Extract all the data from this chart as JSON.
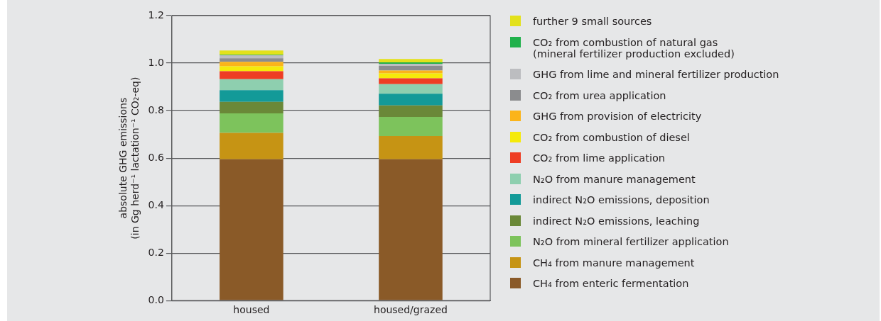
{
  "chart_data": {
    "type": "bar",
    "stacked": true,
    "ylabel": "absolute GHG emissions\n(in Gg herd⁻¹ lactation⁻¹ CO₂-eq)",
    "categories": [
      "housed",
      "housed/grazed"
    ],
    "ylim": [
      0,
      1.2
    ],
    "yticks": [
      {
        "value": 0,
        "label": "0.0"
      },
      {
        "value": 0.2,
        "label": "0.2"
      },
      {
        "value": 0.4,
        "label": "0.4"
      },
      {
        "value": 0.6,
        "label": "0.6"
      },
      {
        "value": 0.8,
        "label": "0.8"
      },
      {
        "value": 1,
        "label": "1.0"
      },
      {
        "value": 1.2,
        "label": "1.2"
      }
    ],
    "grid": "y",
    "legend": "right",
    "series": [
      {
        "name": "CH₄ from enteric fermentation",
        "color": "#8a5a28",
        "values": [
          0.595,
          0.595
        ]
      },
      {
        "name": "CH₄ from manure management",
        "color": "#c69414",
        "values": [
          0.111,
          0.098
        ]
      },
      {
        "name": "N₂O from mineral fertilizer application",
        "color": "#7dc35c",
        "values": [
          0.082,
          0.08
        ]
      },
      {
        "name": "indirect N₂O emissions, leaching",
        "color": "#6a8838",
        "values": [
          0.049,
          0.049
        ]
      },
      {
        "name": "indirect N₂O emissions, deposition",
        "color": "#139a98",
        "values": [
          0.049,
          0.049
        ]
      },
      {
        "name": "N₂O from manure management",
        "color": "#8ecfaf",
        "values": [
          0.046,
          0.04
        ]
      },
      {
        "name": "CO₂ from lime application",
        "color": "#ee3d24",
        "values": [
          0.034,
          0.025
        ]
      },
      {
        "name": "CO₂ from combustion of diesel",
        "color": "#f5ea0a",
        "values": [
          0.021,
          0.021
        ]
      },
      {
        "name": "GHG from provision of electricity",
        "color": "#fbb41a",
        "values": [
          0.018,
          0.012
        ]
      },
      {
        "name": "CO₂ from urea application",
        "color": "#8b8c8e",
        "values": [
          0.015,
          0.019
        ]
      },
      {
        "name": "GHG from lime and mineral fertilizer production",
        "color": "#bcbdc0",
        "values": [
          0.013,
          0.009
        ]
      },
      {
        "name": "CO₂ from combustion of natural gas\n(mineral fertilizer production excluded)",
        "color": "#20b14b",
        "values": [
          0.002,
          0.006
        ]
      },
      {
        "name": "further 9 small sources",
        "color": "#e3e11b",
        "values": [
          0.018,
          0.014
        ]
      }
    ]
  }
}
